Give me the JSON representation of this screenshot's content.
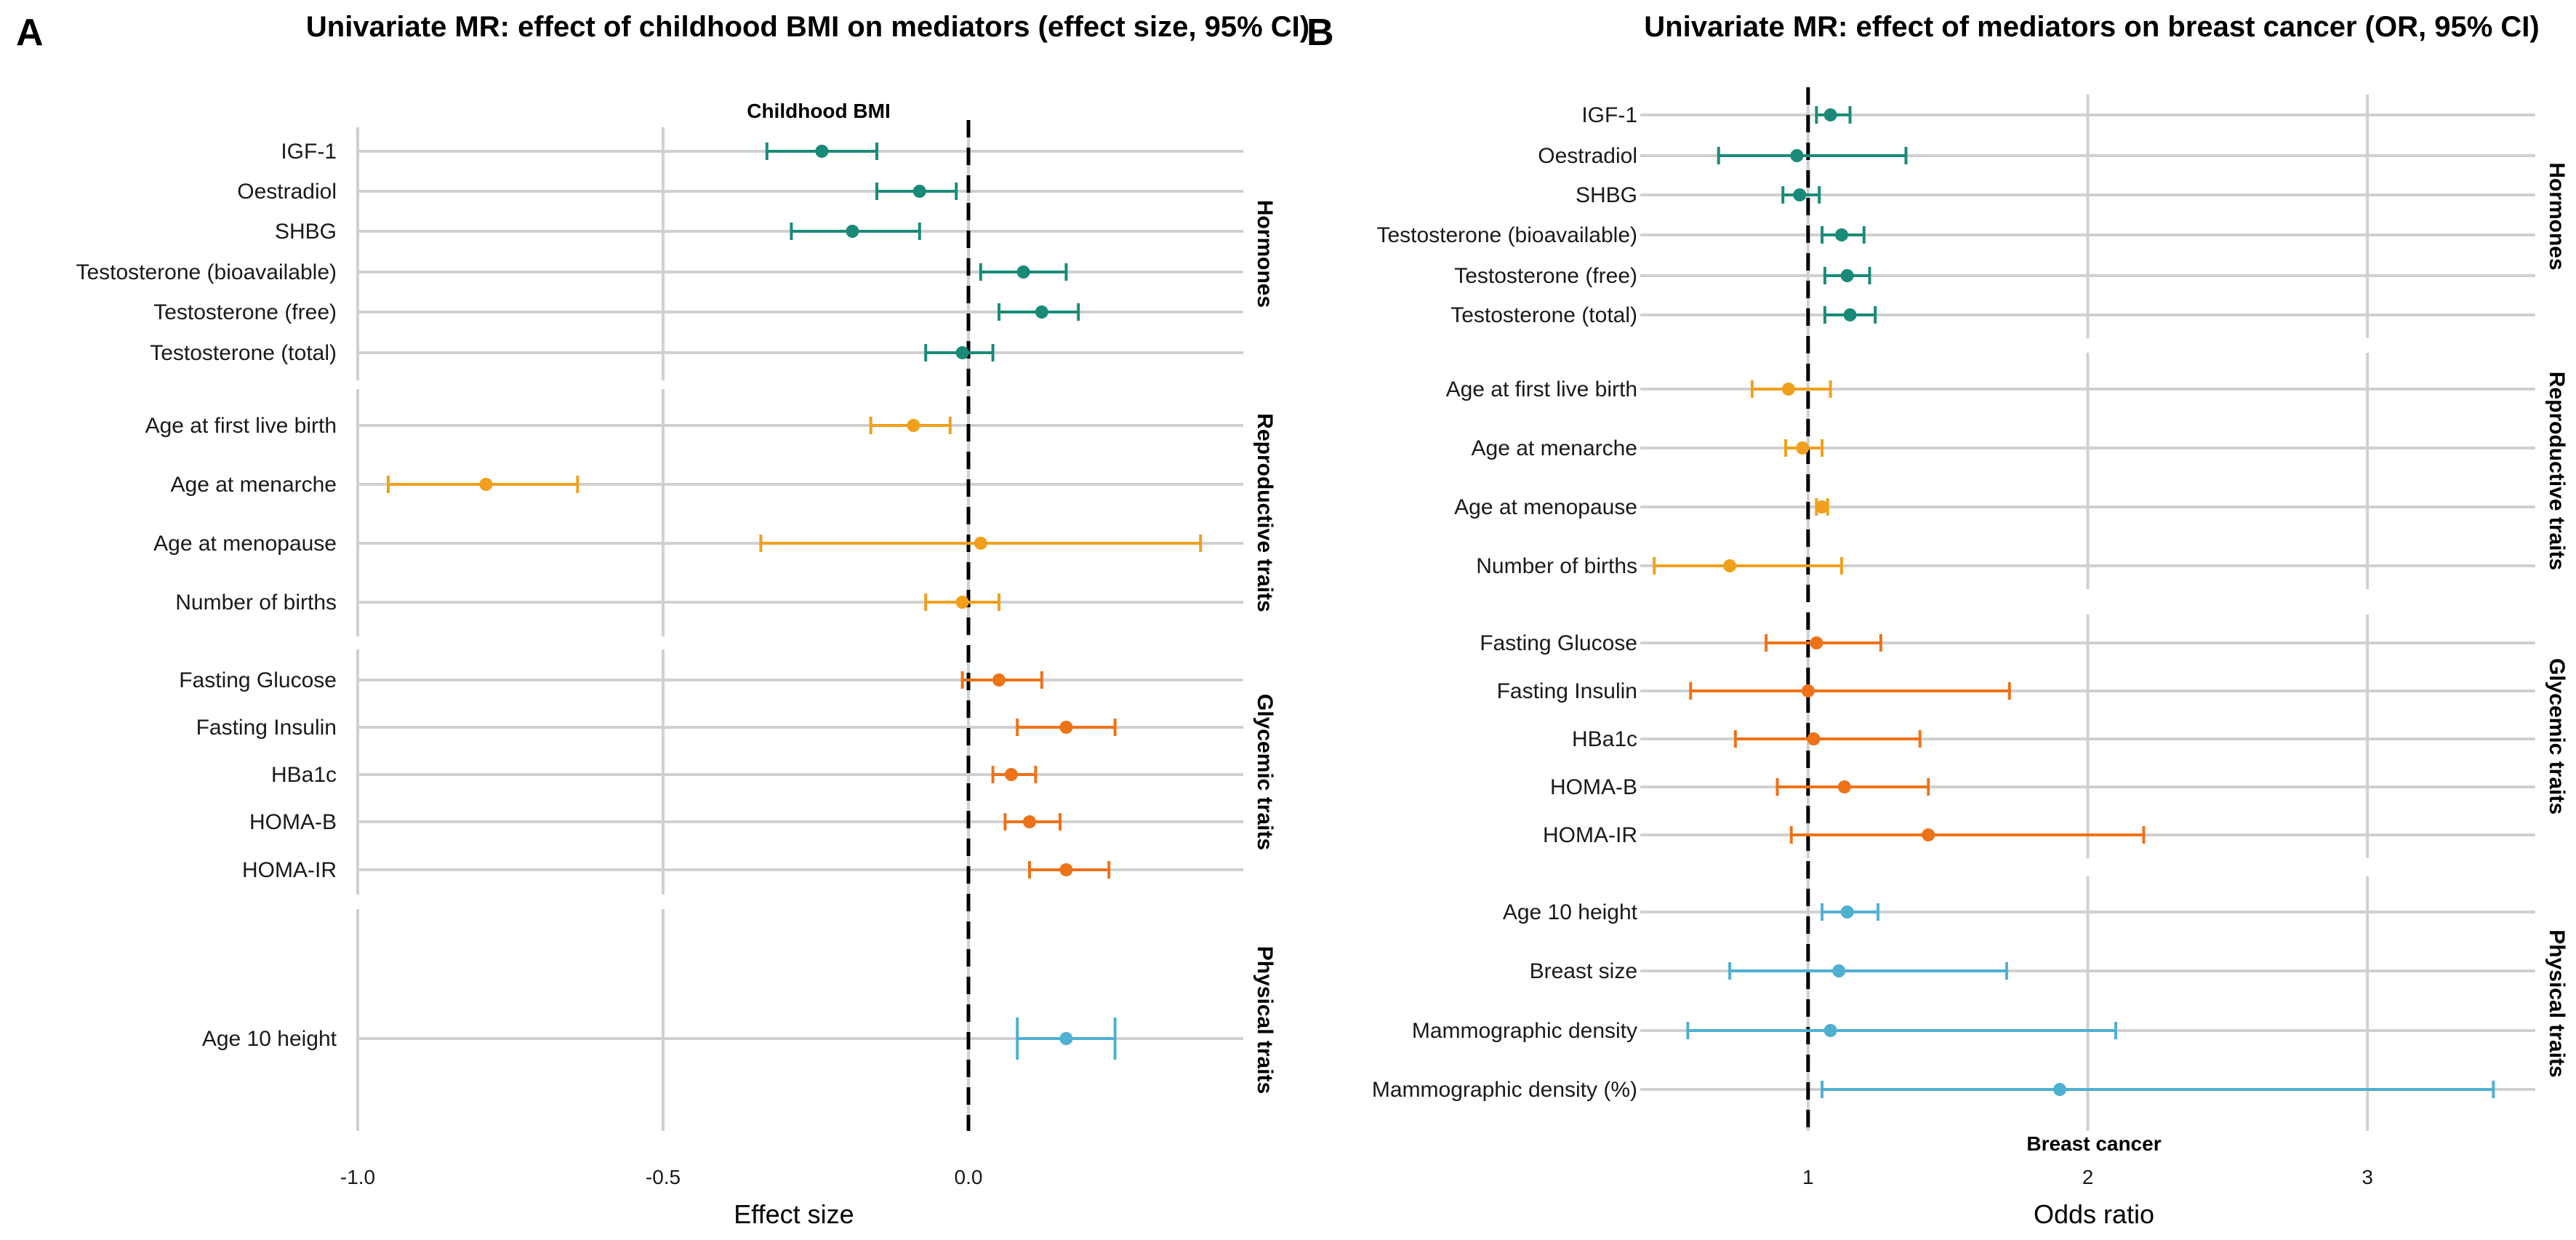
{
  "colors": {
    "Hormones": "#1a8a78",
    "Reproductive traits": "#f0a01c",
    "Glycemic traits": "#ee7218",
    "Physical traits": "#4fb0d2",
    "grid": "#d0d0d0",
    "reference_line": "#000000"
  },
  "chart_data": [
    {
      "panel": "A",
      "type": "forest",
      "title": "Univariate MR: effect of childhood BMI on mediators (effect size, 95% CI)",
      "facet_title": "Childhood BMI",
      "xlabel": "Effect size",
      "xlim": [
        -1.0,
        0.45
      ],
      "xticks": [
        -1.0,
        -0.5,
        0.0
      ],
      "xtick_labels": [
        "-1.0",
        "-0.5",
        "0.0"
      ],
      "reference_line": 0.0,
      "groups": [
        {
          "name": "Hormones",
          "rows": [
            {
              "label": "IGF-1",
              "est": -0.24,
              "lo": -0.33,
              "hi": -0.15
            },
            {
              "label": "Oestradiol",
              "est": -0.08,
              "lo": -0.15,
              "hi": -0.02
            },
            {
              "label": "SHBG",
              "est": -0.19,
              "lo": -0.29,
              "hi": -0.08
            },
            {
              "label": "Testosterone (bioavailable)",
              "est": 0.09,
              "lo": 0.02,
              "hi": 0.16
            },
            {
              "label": "Testosterone (free)",
              "est": 0.12,
              "lo": 0.05,
              "hi": 0.18
            },
            {
              "label": "Testosterone (total)",
              "est": -0.01,
              "lo": -0.07,
              "hi": 0.04
            }
          ]
        },
        {
          "name": "Reproductive traits",
          "rows": [
            {
              "label": "Age at first live birth",
              "est": -0.09,
              "lo": -0.16,
              "hi": -0.03
            },
            {
              "label": "Age at menarche",
              "est": -0.79,
              "lo": -0.95,
              "hi": -0.64
            },
            {
              "label": "Age at menopause",
              "est": 0.02,
              "lo": -0.34,
              "hi": 0.38
            },
            {
              "label": "Number of births",
              "est": -0.01,
              "lo": -0.07,
              "hi": 0.05
            }
          ]
        },
        {
          "name": "Glycemic traits",
          "rows": [
            {
              "label": "Fasting Glucose",
              "est": 0.05,
              "lo": -0.01,
              "hi": 0.12
            },
            {
              "label": "Fasting Insulin",
              "est": 0.16,
              "lo": 0.08,
              "hi": 0.24
            },
            {
              "label": "HBa1c",
              "est": 0.07,
              "lo": 0.04,
              "hi": 0.11
            },
            {
              "label": "HOMA-B",
              "est": 0.1,
              "lo": 0.06,
              "hi": 0.15
            },
            {
              "label": "HOMA-IR",
              "est": 0.16,
              "lo": 0.1,
              "hi": 0.23
            }
          ]
        },
        {
          "name": "Physical traits",
          "rows": [
            {
              "label": "Age 10 height",
              "est": 0.16,
              "lo": 0.08,
              "hi": 0.24
            }
          ]
        }
      ]
    },
    {
      "panel": "B",
      "type": "forest",
      "title": "Univariate MR: effect of mediators on breast cancer (OR, 95% CI)",
      "facet_title": "Breast cancer",
      "xlabel": "Odds ratio",
      "xlim": [
        0.4,
        3.6
      ],
      "xticks": [
        1,
        2,
        3
      ],
      "xtick_labels": [
        "1",
        "2",
        "3"
      ],
      "reference_line": 1.0,
      "groups": [
        {
          "name": "Hormones",
          "rows": [
            {
              "label": "IGF-1",
              "est": 1.08,
              "lo": 1.03,
              "hi": 1.15
            },
            {
              "label": "Oestradiol",
              "est": 0.96,
              "lo": 0.68,
              "hi": 1.35
            },
            {
              "label": "SHBG",
              "est": 0.97,
              "lo": 0.91,
              "hi": 1.04
            },
            {
              "label": "Testosterone (bioavailable)",
              "est": 1.12,
              "lo": 1.05,
              "hi": 1.2
            },
            {
              "label": "Testosterone (free)",
              "est": 1.14,
              "lo": 1.06,
              "hi": 1.22
            },
            {
              "label": "Testosterone (total)",
              "est": 1.15,
              "lo": 1.06,
              "hi": 1.24
            }
          ]
        },
        {
          "name": "Reproductive traits",
          "rows": [
            {
              "label": "Age at first live birth",
              "est": 0.93,
              "lo": 0.8,
              "hi": 1.08
            },
            {
              "label": "Age at menarche",
              "est": 0.98,
              "lo": 0.92,
              "hi": 1.05
            },
            {
              "label": "Age at menopause",
              "est": 1.05,
              "lo": 1.03,
              "hi": 1.07
            },
            {
              "label": "Number of births",
              "est": 0.72,
              "lo": 0.45,
              "hi": 1.12
            }
          ]
        },
        {
          "name": "Glycemic traits",
          "rows": [
            {
              "label": "Fasting Glucose",
              "est": 1.03,
              "lo": 0.85,
              "hi": 1.26
            },
            {
              "label": "Fasting Insulin",
              "est": 1.0,
              "lo": 0.58,
              "hi": 1.72
            },
            {
              "label": "HBa1c",
              "est": 1.02,
              "lo": 0.74,
              "hi": 1.4
            },
            {
              "label": "HOMA-B",
              "est": 1.13,
              "lo": 0.89,
              "hi": 1.43
            },
            {
              "label": "HOMA-IR",
              "est": 1.43,
              "lo": 0.94,
              "hi": 2.2
            }
          ]
        },
        {
          "name": "Physical traits",
          "rows": [
            {
              "label": "Age 10 height",
              "est": 1.14,
              "lo": 1.05,
              "hi": 1.25
            },
            {
              "label": "Breast size",
              "est": 1.11,
              "lo": 0.72,
              "hi": 1.71
            },
            {
              "label": "Mammographic density",
              "est": 1.08,
              "lo": 0.57,
              "hi": 2.1
            },
            {
              "label": "Mammographic density (%)",
              "est": 1.9,
              "lo": 1.05,
              "hi": 3.45
            }
          ]
        }
      ]
    }
  ]
}
